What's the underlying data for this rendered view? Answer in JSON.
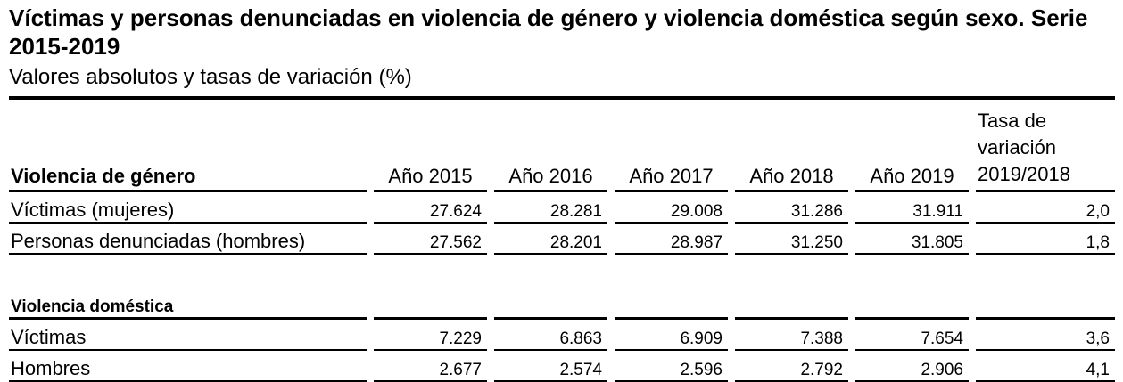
{
  "title": "Víctimas  y personas denunciadas en violencia de género y violencia doméstica según sexo. Serie 2015-2019",
  "subtitle": "Valores absolutos y tasas de variación (%)",
  "header": {
    "section1": "Violencia de género",
    "years": [
      "Año 2015",
      "Año 2016",
      "Año 2017",
      "Año 2018",
      "Año 2019"
    ],
    "rate": "Tasa de variación 2019/2018"
  },
  "gender_violence": [
    {
      "label": "Víctimas (mujeres)",
      "values": [
        "27.624",
        "28.281",
        "29.008",
        "31.286",
        "31.911"
      ],
      "rate": "2,0"
    },
    {
      "label": "Personas denunciadas (hombres)",
      "values": [
        "27.562",
        "28.201",
        "28.987",
        "31.250",
        "31.805"
      ],
      "rate": "1,8"
    }
  ],
  "section2": "Violencia doméstica",
  "domestic_violence": [
    {
      "label": "Víctimas",
      "values": [
        "7.229",
        "6.863",
        "6.909",
        "7.388",
        "7.654"
      ],
      "rate": "3,6"
    },
    {
      "label": "Hombres",
      "values": [
        "2.677",
        "2.574",
        "2.596",
        "2.792",
        "2.906"
      ],
      "rate": "4,1"
    }
  ]
}
